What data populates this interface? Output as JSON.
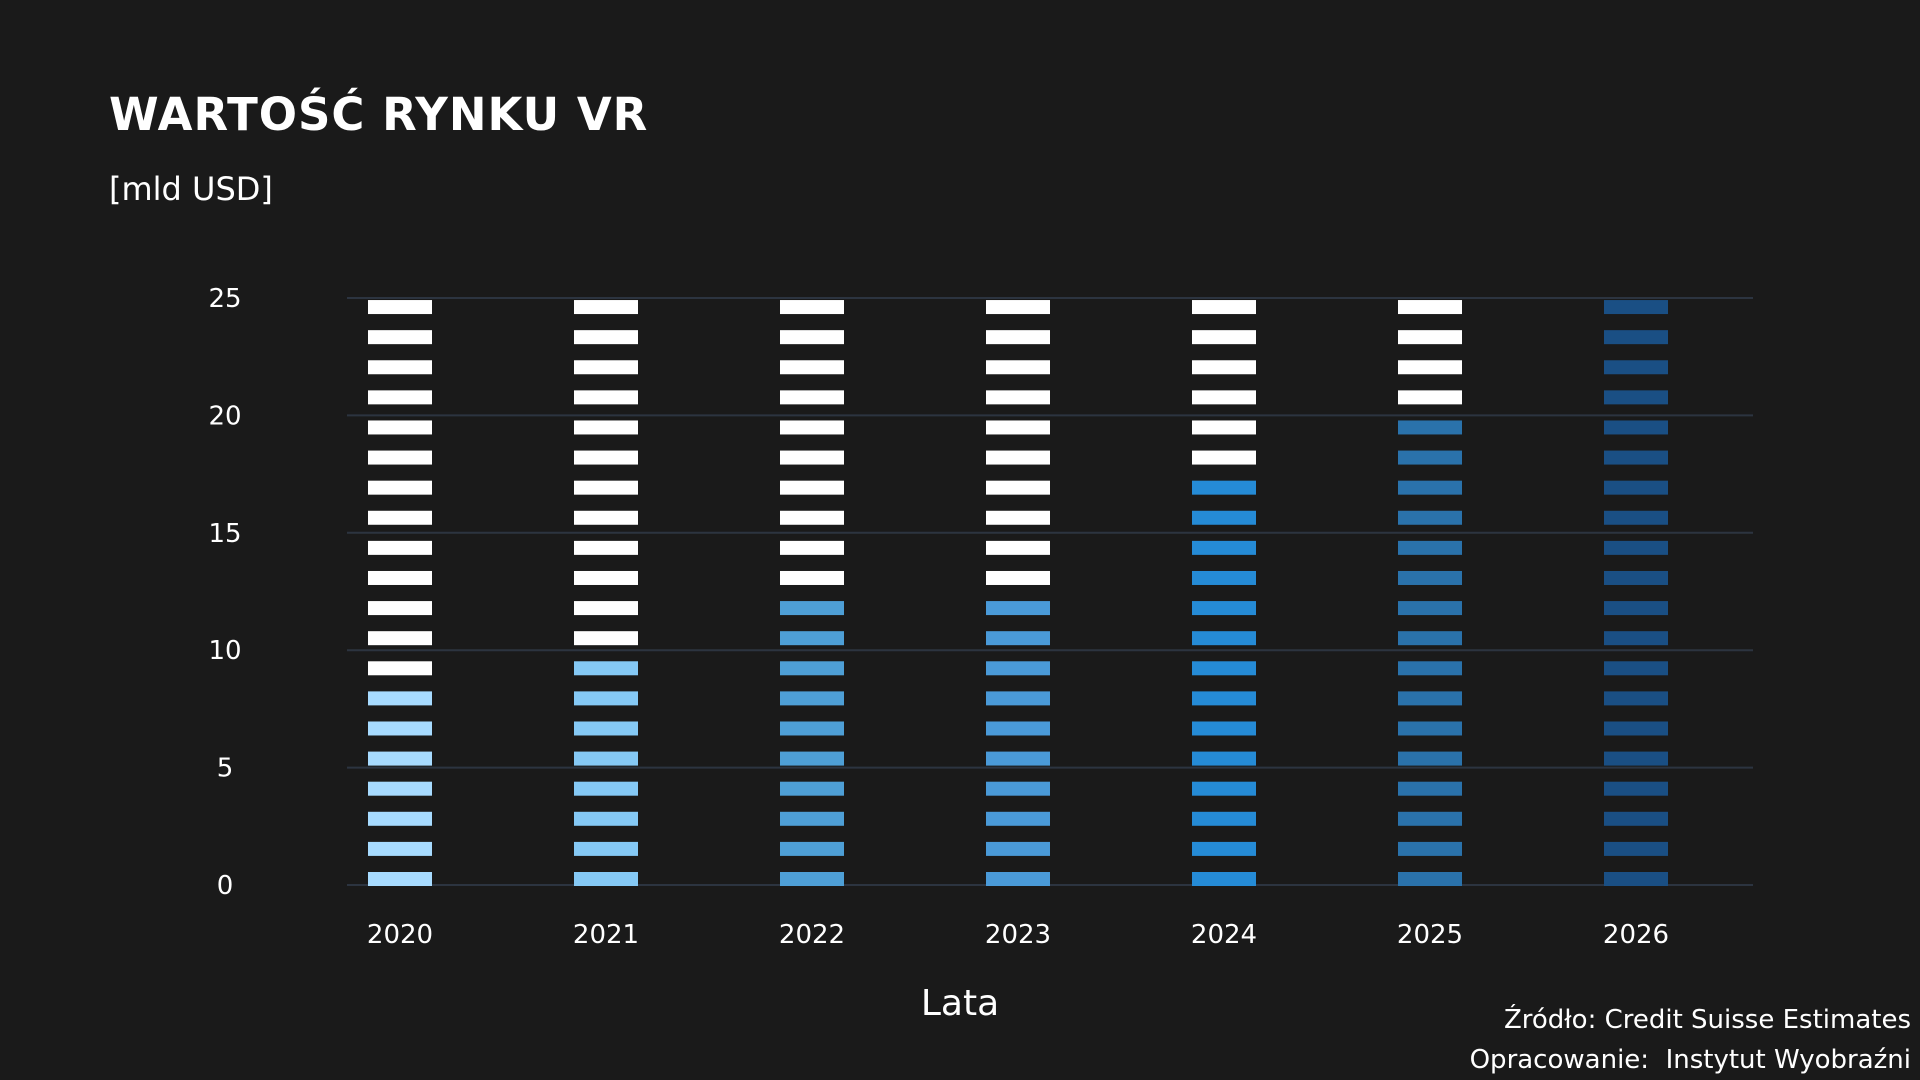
{
  "chart_data": {
    "type": "bar",
    "title": "WARTOŚĆ RYNKU VR",
    "subtitle": "[mld USD]",
    "xlabel": "Lata",
    "ylabel": "",
    "ylim": [
      0,
      25
    ],
    "yticks": [
      "0",
      "5",
      "10",
      "15",
      "20",
      "25"
    ],
    "grid": true,
    "categories": [
      "2020",
      "2021",
      "2022",
      "2023",
      "2024",
      "2025",
      "2026"
    ],
    "values": [
      8.9,
      10.5,
      12.1,
      13.1,
      17.3,
      20.4,
      25.0
    ],
    "total": 25,
    "colors": {
      "filled": [
        "#a7dbff",
        "#85c9f5",
        "#4e9fd6",
        "#4a9ad8",
        "#258bd6",
        "#2a72ab",
        "#1a4f84"
      ],
      "empty": "#ffffff",
      "grid": "#2c3440",
      "background": "#1a1a1a"
    }
  },
  "source": {
    "line1": "Źródło: Credit Suisse Estimates",
    "line2": "Opracowanie:  Instytut Wyobraźni"
  }
}
